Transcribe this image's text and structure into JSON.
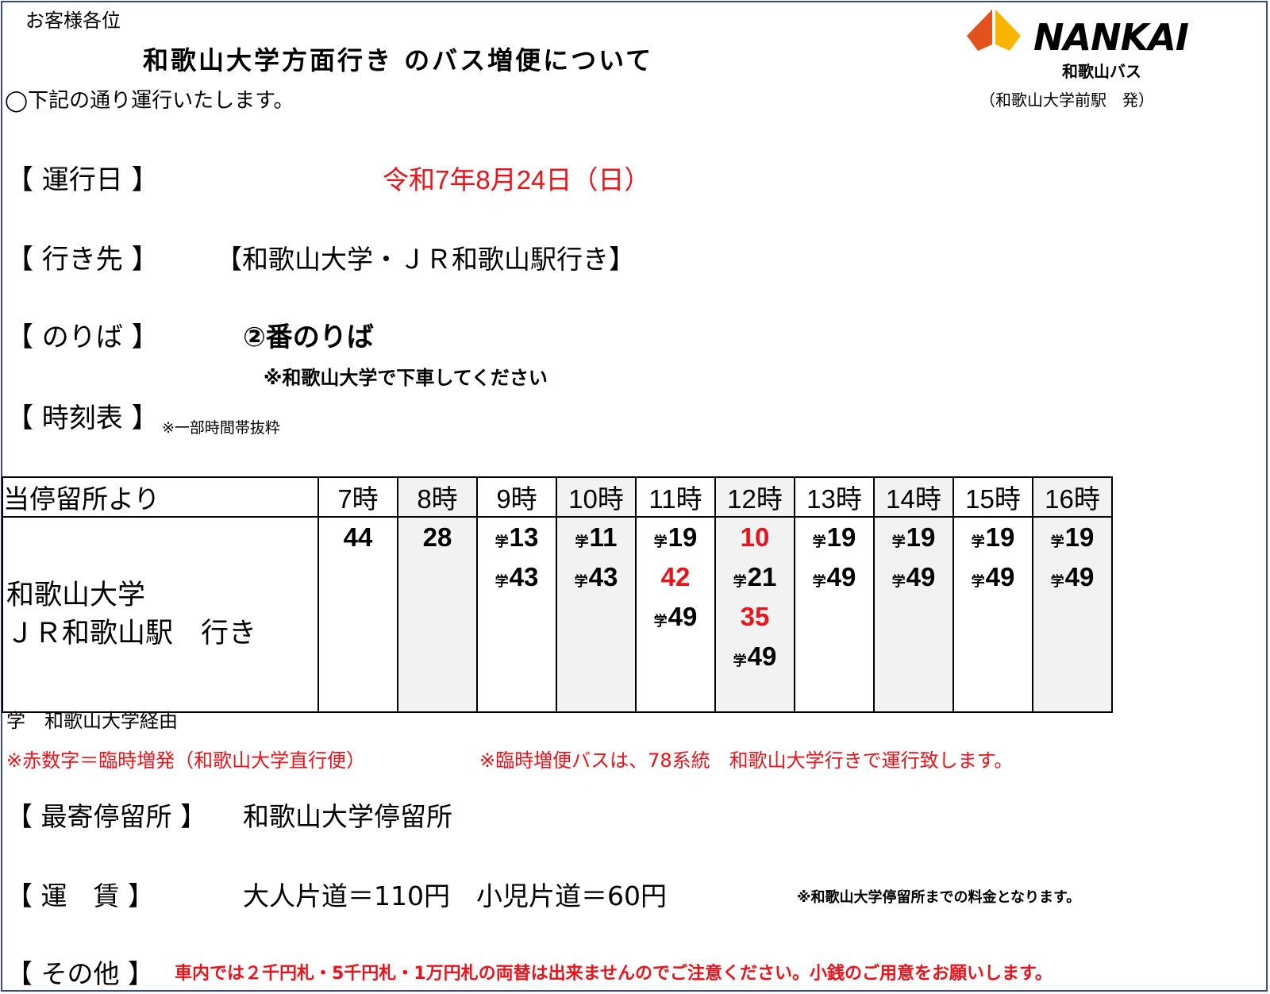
{
  "greeting": "お客様各位",
  "title": "和歌山大学方面行き のバス増便について",
  "intro": "◯下記の通り運行いたします。",
  "logo": {
    "brand": "NANKAI",
    "sub": "和歌山バス",
    "origin": "（和歌山大学前駅　発）"
  },
  "sections": {
    "date": {
      "label": "【 運行日 】",
      "value": "令和7年8月24日（日）"
    },
    "destination": {
      "label": "【 行き先 】",
      "value": "【和歌山大学・ＪＲ和歌山駅行き】"
    },
    "platform": {
      "label": "【 のりば 】",
      "value": "②番のりば",
      "note": "※和歌山大学で下車してください"
    },
    "timetable": {
      "label": "【 時刻表 】",
      "note": "※一部時間帯抜粋"
    }
  },
  "timetable": {
    "header_label": "当停留所より",
    "destination_lines": [
      "和歌山大学",
      "ＪＲ和歌山駅　行き"
    ],
    "hours": [
      {
        "label": "7時",
        "departures": [
          {
            "min": "44",
            "mark": "",
            "extra": false
          }
        ]
      },
      {
        "label": "8時",
        "departures": [
          {
            "min": "28",
            "mark": "",
            "extra": false
          }
        ]
      },
      {
        "label": "9時",
        "departures": [
          {
            "min": "13",
            "mark": "学",
            "extra": false
          },
          {
            "min": "43",
            "mark": "学",
            "extra": false
          }
        ]
      },
      {
        "label": "10時",
        "departures": [
          {
            "min": "11",
            "mark": "学",
            "extra": false
          },
          {
            "min": "43",
            "mark": "学",
            "extra": false
          }
        ]
      },
      {
        "label": "11時",
        "departures": [
          {
            "min": "19",
            "mark": "学",
            "extra": false
          },
          {
            "min": "42",
            "mark": "",
            "extra": true
          },
          {
            "min": "49",
            "mark": "学",
            "extra": false
          }
        ]
      },
      {
        "label": "12時",
        "departures": [
          {
            "min": "10",
            "mark": "",
            "extra": true
          },
          {
            "min": "21",
            "mark": "学",
            "extra": false
          },
          {
            "min": "35",
            "mark": "",
            "extra": true
          },
          {
            "min": "49",
            "mark": "学",
            "extra": false
          }
        ]
      },
      {
        "label": "13時",
        "departures": [
          {
            "min": "19",
            "mark": "学",
            "extra": false
          },
          {
            "min": "49",
            "mark": "学",
            "extra": false
          }
        ]
      },
      {
        "label": "14時",
        "departures": [
          {
            "min": "19",
            "mark": "学",
            "extra": false
          },
          {
            "min": "49",
            "mark": "学",
            "extra": false
          }
        ]
      },
      {
        "label": "15時",
        "departures": [
          {
            "min": "19",
            "mark": "学",
            "extra": false
          },
          {
            "min": "49",
            "mark": "学",
            "extra": false
          }
        ]
      },
      {
        "label": "16時",
        "departures": [
          {
            "min": "19",
            "mark": "学",
            "extra": false
          },
          {
            "min": "49",
            "mark": "学",
            "extra": false
          }
        ]
      }
    ]
  },
  "legend": {
    "via": "学　和歌山大学経由",
    "red_note": "※赤数字＝臨時増発（和歌山大学直行便）",
    "extra_note": "※臨時増便バスは、78系統　和歌山大学行きで運行致します。"
  },
  "nearest_stop": {
    "label": "【 最寄停留所 】",
    "value": "和歌山大学停留所"
  },
  "fare": {
    "label": "【 運　賃 】",
    "value": "大人片道＝110円　小児片道＝60円",
    "note": "※和歌山大学停留所までの料金となります。"
  },
  "other": {
    "label": "【 その他 】",
    "value": "車内では２千円札・5千円札・1万円札の両替は出来ませんのでご注意ください。小銭のご用意をお願いします。"
  },
  "colors": {
    "red": "#e8141b",
    "border": "#3a4a8a",
    "logo_orange": "#f7b500",
    "logo_red": "#e2521d"
  }
}
